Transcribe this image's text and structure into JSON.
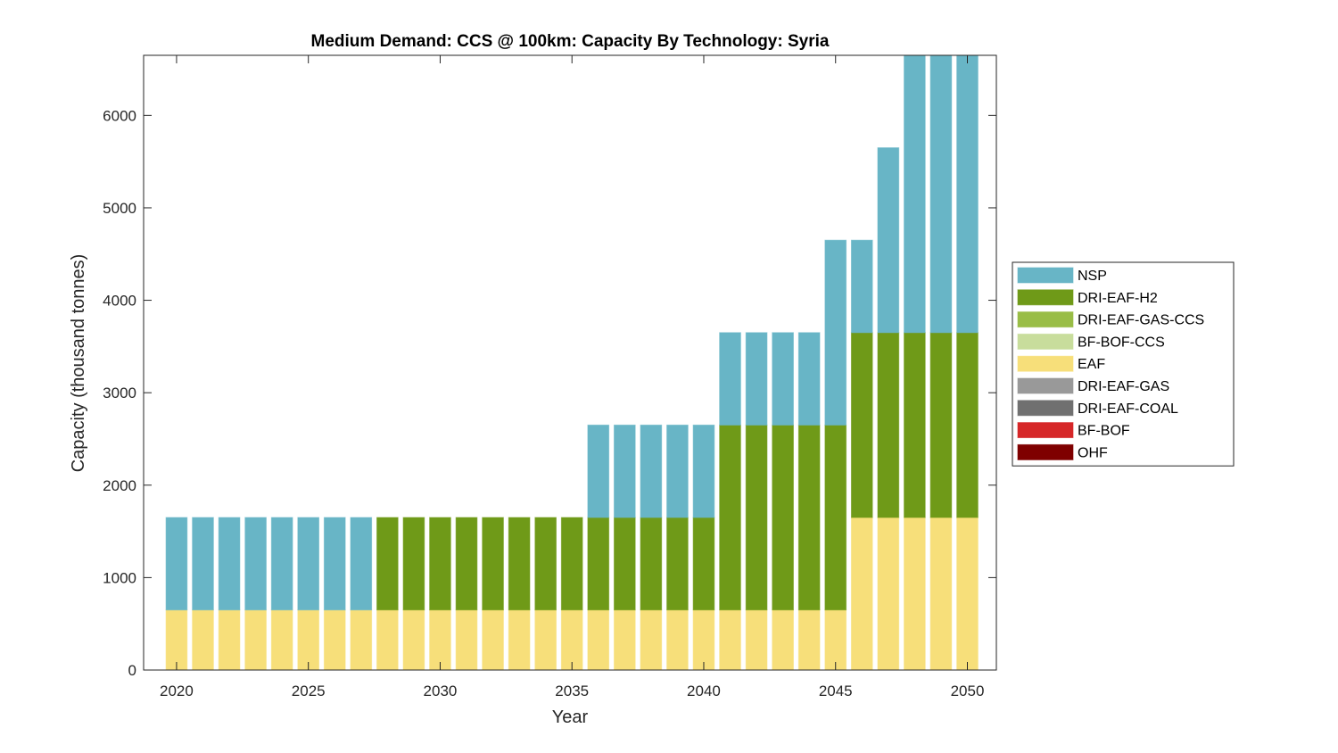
{
  "chart_data": {
    "type": "bar",
    "stacked": true,
    "title": "Medium Demand: CCS @ 100km: Capacity By Technology: Syria",
    "xlabel": "Year",
    "ylabel": "Capacity (thousand tonnes)",
    "xlim": [
      2018.75,
      2051.1
    ],
    "ylim": [
      0,
      6650
    ],
    "xticks": [
      2020,
      2025,
      2030,
      2035,
      2040,
      2045,
      2050
    ],
    "yticks": [
      0,
      1000,
      2000,
      3000,
      4000,
      5000,
      6000
    ],
    "grid": false,
    "legend_position": "right-outside",
    "x": [
      2020,
      2021,
      2022,
      2023,
      2024,
      2025,
      2026,
      2027,
      2028,
      2029,
      2030,
      2031,
      2032,
      2033,
      2034,
      2035,
      2036,
      2037,
      2038,
      2039,
      2040,
      2041,
      2042,
      2043,
      2044,
      2045,
      2046,
      2047,
      2048,
      2049,
      2050
    ],
    "series": [
      {
        "name": "OHF",
        "color": "#7f0000",
        "values": [
          0,
          0,
          0,
          0,
          0,
          0,
          0,
          0,
          0,
          0,
          0,
          0,
          0,
          0,
          0,
          0,
          0,
          0,
          0,
          0,
          0,
          0,
          0,
          0,
          0,
          0,
          0,
          0,
          0,
          0,
          0
        ]
      },
      {
        "name": "BF-BOF",
        "color": "#d62728",
        "values": [
          0,
          0,
          0,
          0,
          0,
          0,
          0,
          0,
          0,
          0,
          0,
          0,
          0,
          0,
          0,
          0,
          0,
          0,
          0,
          0,
          0,
          0,
          0,
          0,
          0,
          0,
          0,
          0,
          0,
          0,
          0
        ]
      },
      {
        "name": "DRI-EAF-COAL",
        "color": "#707070",
        "values": [
          0,
          0,
          0,
          0,
          0,
          0,
          0,
          0,
          0,
          0,
          0,
          0,
          0,
          0,
          0,
          0,
          0,
          0,
          0,
          0,
          0,
          0,
          0,
          0,
          0,
          0,
          0,
          0,
          0,
          0,
          0
        ]
      },
      {
        "name": "DRI-EAF-GAS",
        "color": "#999999",
        "values": [
          0,
          0,
          0,
          0,
          0,
          0,
          0,
          0,
          0,
          0,
          0,
          0,
          0,
          0,
          0,
          0,
          0,
          0,
          0,
          0,
          0,
          0,
          0,
          0,
          0,
          0,
          0,
          0,
          0,
          0,
          0
        ]
      },
      {
        "name": "EAF",
        "color": "#f7df7a",
        "values": [
          650,
          650,
          650,
          650,
          650,
          650,
          650,
          650,
          650,
          650,
          650,
          650,
          650,
          650,
          650,
          650,
          650,
          650,
          650,
          650,
          650,
          650,
          650,
          650,
          650,
          650,
          1650,
          1650,
          1650,
          1650,
          1650
        ]
      },
      {
        "name": "BF-BOF-CCS",
        "color": "#c8dd9c",
        "values": [
          0,
          0,
          0,
          0,
          0,
          0,
          0,
          0,
          0,
          0,
          0,
          0,
          0,
          0,
          0,
          0,
          0,
          0,
          0,
          0,
          0,
          0,
          0,
          0,
          0,
          0,
          0,
          0,
          0,
          0,
          0
        ]
      },
      {
        "name": "DRI-EAF-GAS-CCS",
        "color": "#99bd46",
        "values": [
          0,
          0,
          0,
          0,
          0,
          0,
          0,
          0,
          0,
          0,
          0,
          0,
          0,
          0,
          0,
          0,
          0,
          0,
          0,
          0,
          0,
          0,
          0,
          0,
          0,
          0,
          0,
          0,
          0,
          0,
          0
        ]
      },
      {
        "name": "DRI-EAF-H2",
        "color": "#6f9a18",
        "values": [
          0,
          0,
          0,
          0,
          0,
          0,
          0,
          0,
          1000,
          1000,
          1000,
          1000,
          1000,
          1000,
          1000,
          1000,
          1000,
          1000,
          1000,
          1000,
          1000,
          2000,
          2000,
          2000,
          2000,
          2000,
          2000,
          2000,
          2000,
          2000,
          2000
        ]
      },
      {
        "name": "NSP",
        "color": "#68b5c6",
        "values": [
          1000,
          1000,
          1000,
          1000,
          1000,
          1000,
          1000,
          1000,
          0,
          0,
          0,
          0,
          0,
          0,
          0,
          0,
          1000,
          1000,
          1000,
          1000,
          1000,
          1000,
          1000,
          1000,
          1000,
          2000,
          1000,
          2000,
          3000,
          3000,
          3000
        ]
      }
    ],
    "legend": [
      "NSP",
      "DRI-EAF-H2",
      "DRI-EAF-GAS-CCS",
      "BF-BOF-CCS",
      "EAF",
      "DRI-EAF-GAS",
      "DRI-EAF-COAL",
      "BF-BOF",
      "OHF"
    ]
  }
}
